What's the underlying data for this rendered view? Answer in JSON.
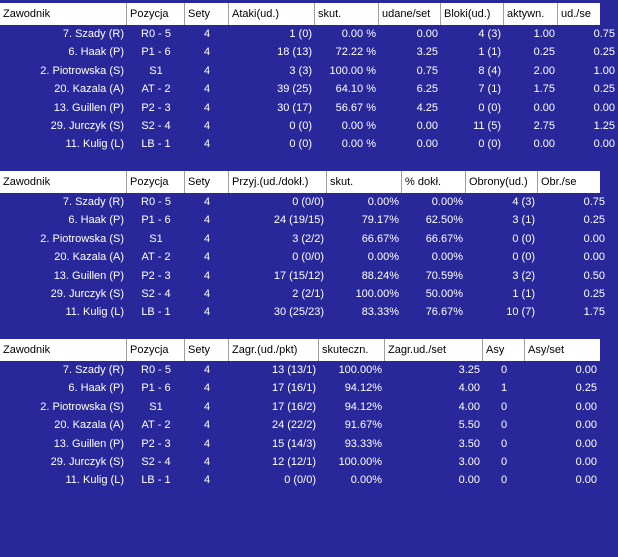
{
  "colors": {
    "background": "#29289a",
    "header_bg": "#ffffff",
    "row_text": "#ffffff"
  },
  "tables": [
    {
      "headers": [
        "Zawodnik",
        "Pozycja",
        "Sety",
        "Ataki(ud.)",
        "skut.",
        "udane/set",
        "Bloki(ud.)",
        "aktywn.",
        "ud./se"
      ],
      "rows": [
        [
          "7. Szady (R)",
          "R0 - 5",
          "4",
          "1 (0)",
          "0.00 %",
          "0.00",
          "4 (3)",
          "1.00",
          "0.75"
        ],
        [
          "6. Haak (P)",
          "P1 - 6",
          "4",
          "18 (13)",
          "72.22 %",
          "3.25",
          "1 (1)",
          "0.25",
          "0.25"
        ],
        [
          "2. Piotrowska (S)",
          "S1",
          "4",
          "3 (3)",
          "100.00 %",
          "0.75",
          "8 (4)",
          "2.00",
          "1.00"
        ],
        [
          "20. Kazala (A)",
          "AT - 2",
          "4",
          "39 (25)",
          "64.10 %",
          "6.25",
          "7 (1)",
          "1.75",
          "0.25"
        ],
        [
          "13. Guillen (P)",
          "P2 - 3",
          "4",
          "30 (17)",
          "56.67 %",
          "4.25",
          "0 (0)",
          "0.00",
          "0.00"
        ],
        [
          "29. Jurczyk (S)",
          "S2 - 4",
          "4",
          "0 (0)",
          "0.00 %",
          "0.00",
          "11 (5)",
          "2.75",
          "1.25"
        ],
        [
          "11. Kulig (L)",
          "LB - 1",
          "4",
          "0 (0)",
          "0.00 %",
          "0.00",
          "0 (0)",
          "0.00",
          "0.00"
        ]
      ]
    },
    {
      "headers": [
        "Zawodnik",
        "Pozycja",
        "Sety",
        "Przyj.(ud./dokł.)",
        "skut.",
        "% dokł.",
        "Obrony(ud.)",
        "Obr./se"
      ],
      "rows": [
        [
          "7. Szady (R)",
          "R0 - 5",
          "4",
          "0 (0/0)",
          "0.00%",
          "0.00%",
          "4 (3)",
          "0.75"
        ],
        [
          "6. Haak (P)",
          "P1 - 6",
          "4",
          "24 (19/15)",
          "79.17%",
          "62.50%",
          "3 (1)",
          "0.25"
        ],
        [
          "2. Piotrowska (S)",
          "S1",
          "4",
          "3 (2/2)",
          "66.67%",
          "66.67%",
          "0 (0)",
          "0.00"
        ],
        [
          "20. Kazala (A)",
          "AT - 2",
          "4",
          "0 (0/0)",
          "0.00%",
          "0.00%",
          "0 (0)",
          "0.00"
        ],
        [
          "13. Guillen (P)",
          "P2 - 3",
          "4",
          "17 (15/12)",
          "88.24%",
          "70.59%",
          "3 (2)",
          "0.50"
        ],
        [
          "29. Jurczyk (S)",
          "S2 - 4",
          "4",
          "2 (2/1)",
          "100.00%",
          "50.00%",
          "1 (1)",
          "0.25"
        ],
        [
          "11. Kulig (L)",
          "LB - 1",
          "4",
          "30 (25/23)",
          "83.33%",
          "76.67%",
          "10 (7)",
          "1.75"
        ]
      ]
    },
    {
      "headers": [
        "Zawodnik",
        "Pozycja",
        "Sety",
        "Zagr.(ud./pkt)",
        "skuteczn.",
        "Zagr.ud./set",
        "Asy",
        "Asy/set"
      ],
      "rows": [
        [
          "7. Szady (R)",
          "R0 - 5",
          "4",
          "13 (13/1)",
          "100.00%",
          "3.25",
          "0",
          "0.00"
        ],
        [
          "6. Haak (P)",
          "P1 - 6",
          "4",
          "17 (16/1)",
          "94.12%",
          "4.00",
          "1",
          "0.25"
        ],
        [
          "2. Piotrowska (S)",
          "S1",
          "4",
          "17 (16/2)",
          "94.12%",
          "4.00",
          "0",
          "0.00"
        ],
        [
          "20. Kazala (A)",
          "AT - 2",
          "4",
          "24 (22/2)",
          "91.67%",
          "5.50",
          "0",
          "0.00"
        ],
        [
          "13. Guillen (P)",
          "P2 - 3",
          "4",
          "15 (14/3)",
          "93.33%",
          "3.50",
          "0",
          "0.00"
        ],
        [
          "29. Jurczyk (S)",
          "S2 - 4",
          "4",
          "12 (12/1)",
          "100.00%",
          "3.00",
          "0",
          "0.00"
        ],
        [
          "11. Kulig (L)",
          "LB - 1",
          "4",
          "0 (0/0)",
          "0.00%",
          "0.00",
          "0",
          "0.00"
        ]
      ]
    }
  ]
}
